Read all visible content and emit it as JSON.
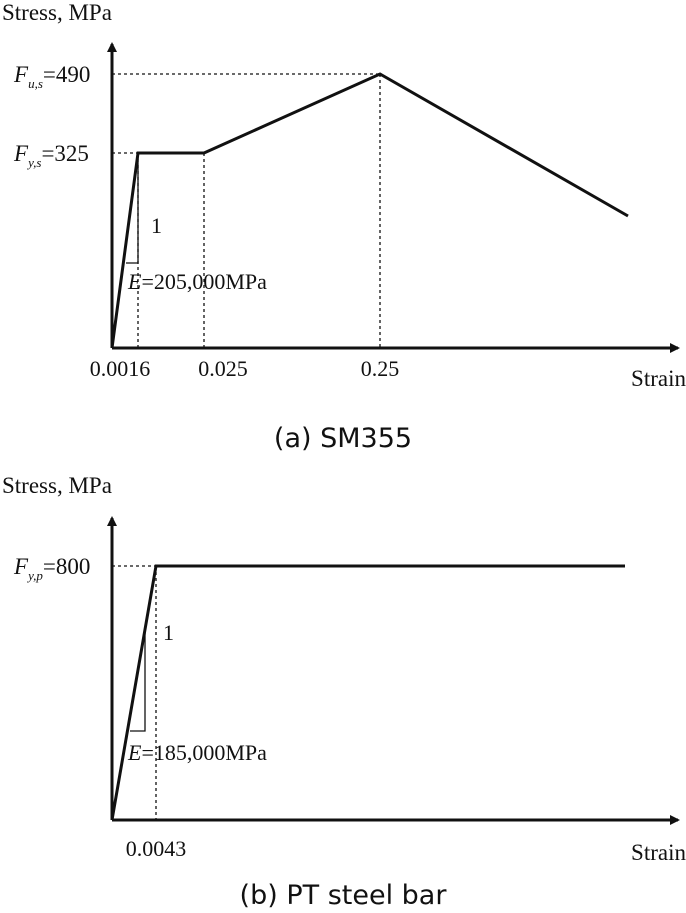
{
  "chart_data": [
    {
      "type": "line",
      "panel": "a",
      "caption": "(a) SM355",
      "ylabel": "Stress, MPa",
      "xlabel": "Strain",
      "x_ticks": [
        "0.0016",
        "0.025",
        "0.25"
      ],
      "y_ticks": [
        {
          "name": "F",
          "sub": "u,s",
          "value_text": "=490",
          "value": 490
        },
        {
          "name": "F",
          "sub": "y,s",
          "value_text": "=325",
          "value": 325
        }
      ],
      "slope_label": "1",
      "modulus": {
        "symbol": "E",
        "text": "=205,000MPa"
      },
      "series": [
        {
          "points": [
            [
              0,
              0
            ],
            [
              0.0016,
              325
            ],
            [
              0.025,
              325
            ],
            [
              0.25,
              490
            ]
          ]
        }
      ]
    },
    {
      "type": "line",
      "panel": "b",
      "caption": "(b) PT steel bar",
      "ylabel": "Stress, MPa",
      "xlabel": "Strain",
      "x_ticks": [
        "0.0043"
      ],
      "y_ticks": [
        {
          "name": "F",
          "sub": "y,p",
          "value_text": "=800",
          "value": 800
        }
      ],
      "slope_label": "1",
      "modulus": {
        "symbol": "E",
        "text": "=185,000MPa"
      },
      "series": [
        {
          "points": [
            [
              0,
              0
            ],
            [
              0.0043,
              800
            ]
          ]
        }
      ]
    }
  ]
}
